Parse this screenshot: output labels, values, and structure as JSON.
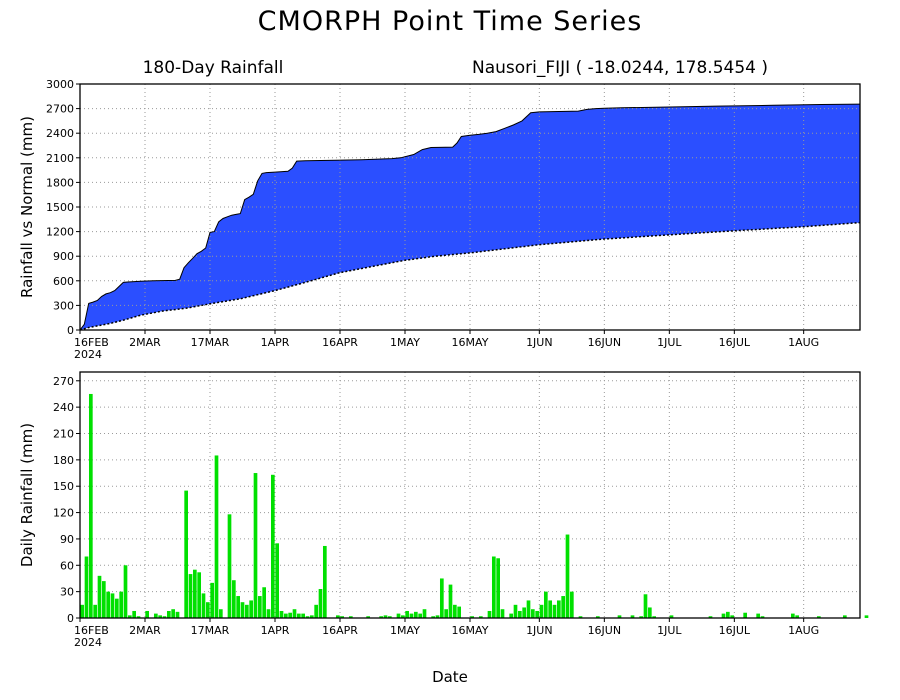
{
  "page": {
    "title": "CMORPH Point Time Series",
    "subtitle_left": "180-Day Rainfall",
    "subtitle_right": "Nausori_FIJI ( -18.0244, 178.5454 )",
    "xlabel": "Date"
  },
  "colors": {
    "fill_blue": "#2b4fff",
    "bar_green": "#00e000",
    "axis": "#000000",
    "grid": "#9a9a9a"
  },
  "chart_data": [
    {
      "type": "area",
      "title": "",
      "ylabel": "Rainfall vs Normal (mm)",
      "xlabel": "",
      "grid": true,
      "ylim": [
        0,
        3000
      ],
      "yticks": [
        0,
        300,
        600,
        900,
        1200,
        1500,
        1800,
        2100,
        2400,
        2700,
        3000
      ],
      "xdomain": [
        "2024-02-16",
        "2024-08-14"
      ],
      "xticks": [
        {
          "date": "2024-02-16",
          "label": "16FEB",
          "sublabel": "2024"
        },
        {
          "date": "2024-03-02",
          "label": "2MAR"
        },
        {
          "date": "2024-03-17",
          "label": "17MAR"
        },
        {
          "date": "2024-04-01",
          "label": "1APR"
        },
        {
          "date": "2024-04-16",
          "label": "16APR"
        },
        {
          "date": "2024-05-01",
          "label": "1MAY"
        },
        {
          "date": "2024-05-16",
          "label": "16MAY"
        },
        {
          "date": "2024-06-01",
          "label": "1JUN"
        },
        {
          "date": "2024-06-16",
          "label": "16JUN"
        },
        {
          "date": "2024-07-01",
          "label": "1JUL"
        },
        {
          "date": "2024-07-16",
          "label": "16JUL"
        },
        {
          "date": "2024-08-01",
          "label": "1AUG"
        }
      ],
      "series": [
        {
          "role": "observed",
          "points": [
            [
              "2024-02-16",
              0
            ],
            [
              "2024-02-17",
              70
            ],
            [
              "2024-02-18",
              325
            ],
            [
              "2024-02-19",
              340
            ],
            [
              "2024-02-20",
              360
            ],
            [
              "2024-02-21",
              410
            ],
            [
              "2024-02-22",
              440
            ],
            [
              "2024-02-23",
              455
            ],
            [
              "2024-02-24",
              480
            ],
            [
              "2024-02-25",
              530
            ],
            [
              "2024-02-26",
              580
            ],
            [
              "2024-02-27",
              585
            ],
            [
              "2024-03-01",
              595
            ],
            [
              "2024-03-04",
              600
            ],
            [
              "2024-03-09",
              605
            ],
            [
              "2024-03-10",
              620
            ],
            [
              "2024-03-11",
              760
            ],
            [
              "2024-03-12",
              820
            ],
            [
              "2024-03-13",
              875
            ],
            [
              "2024-03-14",
              930
            ],
            [
              "2024-03-15",
              960
            ],
            [
              "2024-03-16",
              1000
            ],
            [
              "2024-03-17",
              1190
            ],
            [
              "2024-03-18",
              1200
            ],
            [
              "2024-03-19",
              1320
            ],
            [
              "2024-03-20",
              1360
            ],
            [
              "2024-03-21",
              1380
            ],
            [
              "2024-03-22",
              1400
            ],
            [
              "2024-03-23",
              1410
            ],
            [
              "2024-03-24",
              1420
            ],
            [
              "2024-03-25",
              1590
            ],
            [
              "2024-03-26",
              1620
            ],
            [
              "2024-03-27",
              1655
            ],
            [
              "2024-03-28",
              1820
            ],
            [
              "2024-03-29",
              1910
            ],
            [
              "2024-03-30",
              1920
            ],
            [
              "2024-04-01",
              1925
            ],
            [
              "2024-04-04",
              1935
            ],
            [
              "2024-04-05",
              1975
            ],
            [
              "2024-04-06",
              2060
            ],
            [
              "2024-04-08",
              2065
            ],
            [
              "2024-04-15",
              2070
            ],
            [
              "2024-04-21",
              2075
            ],
            [
              "2024-04-28",
              2090
            ],
            [
              "2024-04-30",
              2100
            ],
            [
              "2024-05-03",
              2140
            ],
            [
              "2024-05-05",
              2200
            ],
            [
              "2024-05-07",
              2225
            ],
            [
              "2024-05-12",
              2230
            ],
            [
              "2024-05-13",
              2280
            ],
            [
              "2024-05-14",
              2360
            ],
            [
              "2024-05-16",
              2375
            ],
            [
              "2024-05-18",
              2385
            ],
            [
              "2024-05-20",
              2400
            ],
            [
              "2024-05-22",
              2420
            ],
            [
              "2024-05-24",
              2460
            ],
            [
              "2024-05-26",
              2500
            ],
            [
              "2024-05-28",
              2550
            ],
            [
              "2024-05-30",
              2650
            ],
            [
              "2024-06-01",
              2660
            ],
            [
              "2024-06-10",
              2670
            ],
            [
              "2024-06-12",
              2690
            ],
            [
              "2024-06-14",
              2700
            ],
            [
              "2024-06-16",
              2705
            ],
            [
              "2024-06-20",
              2710
            ],
            [
              "2024-07-01",
              2720
            ],
            [
              "2024-07-12",
              2730
            ],
            [
              "2024-07-25",
              2740
            ],
            [
              "2024-08-05",
              2750
            ],
            [
              "2024-08-14",
              2755
            ]
          ]
        },
        {
          "role": "normal",
          "points": [
            [
              "2024-02-16",
              0
            ],
            [
              "2024-02-18",
              30
            ],
            [
              "2024-02-20",
              50
            ],
            [
              "2024-02-23",
              80
            ],
            [
              "2024-02-26",
              120
            ],
            [
              "2024-03-01",
              180
            ],
            [
              "2024-03-06",
              230
            ],
            [
              "2024-03-12",
              270
            ],
            [
              "2024-03-17",
              320
            ],
            [
              "2024-03-24",
              380
            ],
            [
              "2024-04-01",
              480
            ],
            [
              "2024-04-08",
              580
            ],
            [
              "2024-04-16",
              700
            ],
            [
              "2024-04-24",
              780
            ],
            [
              "2024-05-01",
              850
            ],
            [
              "2024-05-08",
              900
            ],
            [
              "2024-05-16",
              940
            ],
            [
              "2024-05-24",
              990
            ],
            [
              "2024-06-01",
              1040
            ],
            [
              "2024-06-16",
              1110
            ],
            [
              "2024-07-01",
              1160
            ],
            [
              "2024-07-16",
              1210
            ],
            [
              "2024-08-01",
              1260
            ],
            [
              "2024-08-14",
              1310
            ]
          ]
        }
      ]
    },
    {
      "type": "bar",
      "title": "",
      "ylabel": "Daily Rainfall (mm)",
      "xlabel": "Date",
      "grid": true,
      "ylim": [
        0,
        280
      ],
      "yticks": [
        0,
        30,
        60,
        90,
        120,
        150,
        180,
        210,
        240,
        270
      ],
      "xdomain": [
        "2024-02-16",
        "2024-08-14"
      ],
      "start_date": "2024-02-16",
      "values": [
        15,
        70,
        255,
        15,
        48,
        42,
        30,
        28,
        22,
        30,
        60,
        3,
        8,
        2,
        0,
        8,
        0,
        5,
        3,
        2,
        8,
        10,
        7,
        0,
        145,
        50,
        55,
        52,
        28,
        18,
        40,
        185,
        10,
        0,
        118,
        43,
        25,
        18,
        15,
        20,
        165,
        25,
        35,
        10,
        163,
        85,
        8,
        5,
        6,
        10,
        5,
        5,
        2,
        3,
        15,
        33,
        82,
        0,
        0,
        3,
        2,
        0,
        2,
        0,
        0,
        0,
        2,
        0,
        0,
        2,
        3,
        2,
        0,
        5,
        3,
        8,
        5,
        7,
        5,
        10,
        0,
        2,
        3,
        45,
        10,
        38,
        15,
        13,
        0,
        0,
        2,
        0,
        2,
        0,
        8,
        70,
        68,
        10,
        0,
        5,
        15,
        8,
        12,
        20,
        10,
        8,
        15,
        30,
        20,
        15,
        20,
        25,
        95,
        30,
        0,
        2,
        0,
        0,
        0,
        2,
        0,
        0,
        0,
        0,
        3,
        0,
        0,
        3,
        0,
        2,
        27,
        12,
        2,
        0,
        0,
        0,
        3,
        0,
        0,
        0,
        0,
        0,
        0,
        0,
        0,
        2,
        0,
        0,
        5,
        7,
        3,
        0,
        0,
        6,
        0,
        0,
        5,
        2,
        0,
        0,
        0,
        0,
        0,
        0,
        5,
        3,
        0,
        0,
        0,
        0,
        2,
        0,
        0,
        0,
        0,
        0,
        3,
        0,
        0,
        0,
        0,
        3
      ]
    }
  ]
}
